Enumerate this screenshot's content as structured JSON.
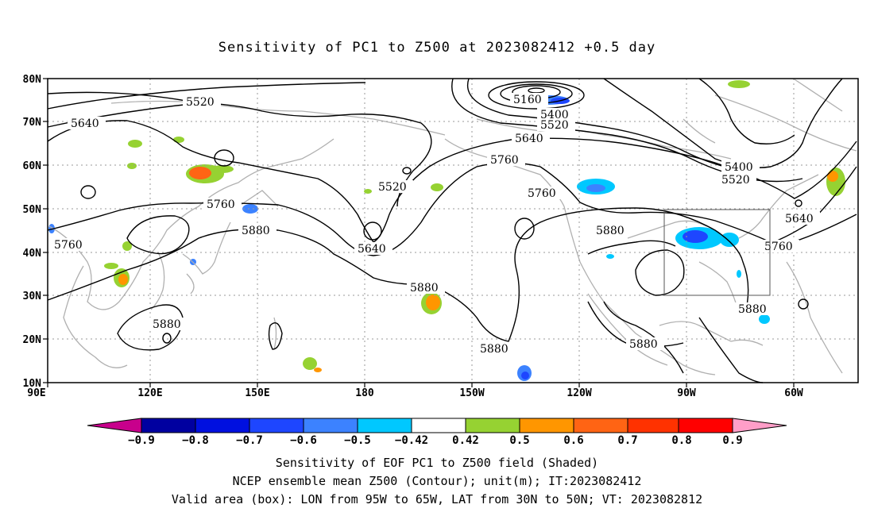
{
  "title": "Sensitivity of PC1 to Z500 at 2023082412 +0.5 day",
  "map": {
    "lon_ticks": [
      "90E",
      "120E",
      "150E",
      "180",
      "150W",
      "120W",
      "90W",
      "60W"
    ],
    "lon_values": [
      90,
      120,
      150,
      180,
      210,
      240,
      270,
      300
    ],
    "lat_ticks": [
      "10N",
      "20N",
      "30N",
      "40N",
      "50N",
      "60N",
      "70N",
      "80N"
    ],
    "lat_values": [
      10,
      20,
      30,
      40,
      50,
      60,
      70,
      80
    ],
    "lon_range": [
      90,
      313
    ],
    "lat_range": [
      10,
      80
    ],
    "valid_box": {
      "lon": [
        265,
        295
      ],
      "lat": [
        30,
        50
      ]
    }
  },
  "contours": {
    "labels": [
      "5520",
      "5640",
      "5760",
      "5880",
      "5160",
      "5400",
      "5520",
      "5640",
      "5760",
      "5640",
      "5520",
      "5760",
      "5880",
      "5880",
      "5880",
      "5880",
      "5880",
      "5880",
      "5760",
      "5400",
      "5520",
      "5640",
      "5760",
      "5880"
    ],
    "colors": {
      "line": "#000000",
      "coast": "#b0b0b0",
      "grid": "#999999"
    }
  },
  "colorbar": {
    "labels": [
      "−0.9",
      "−0.8",
      "−0.7",
      "−0.6",
      "−0.5",
      "−0.42",
      "0.42",
      "0.5",
      "0.6",
      "0.7",
      "0.8",
      "0.9"
    ],
    "colors": [
      "#c8008c",
      "#0000a0",
      "#0010e0",
      "#1e46ff",
      "#3c82ff",
      "#00c8ff",
      "#ffffff",
      "#96d232",
      "#ff9600",
      "#ff6414",
      "#ff3200",
      "#ff0000",
      "#ff9ec8"
    ]
  },
  "captions": {
    "line1": "Sensitivity of EOF PC1 to Z500 field (Shaded)",
    "line2": "NCEP ensemble mean Z500 (Contour); unit(m); IT:2023082412",
    "line3": "Valid area (box): LON from 95W to 65W, LAT from 30N to 50N; VT: 2023082812"
  }
}
